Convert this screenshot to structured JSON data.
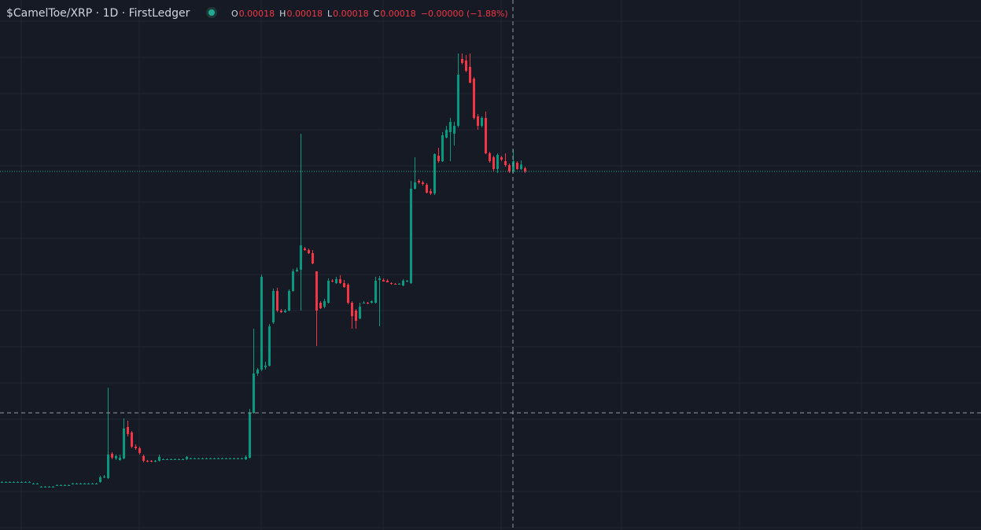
{
  "chart_data": {
    "type": "candlestick",
    "title": "$CamelToe/XRP · 1D · FirstLedger",
    "legend": [
      {
        "key": "O",
        "value": "0.00018"
      },
      {
        "key": "H",
        "value": "0.00018"
      },
      {
        "key": "L",
        "value": "0.00018"
      },
      {
        "key": "C",
        "value": "0.00018"
      }
    ],
    "change": "−0.00000 (−1.88%)",
    "up_color": "#089981",
    "down_color": "#f23645",
    "ylim": [
      0,
      0.0002696
    ],
    "candles": [
      [
        2.44e-05,
        2.48e-05,
        2.4e-05,
        2.44e-05
      ],
      [
        2.44e-05,
        2.48e-05,
        2.4e-05,
        2.44e-05
      ],
      [
        2.44e-05,
        2.48e-05,
        2.4e-05,
        2.44e-05
      ],
      [
        2.44e-05,
        2.48e-05,
        2.4e-05,
        2.44e-05
      ],
      [
        2.44e-05,
        2.48e-05,
        2.4e-05,
        2.44e-05
      ],
      [
        2.44e-05,
        2.48e-05,
        2.4e-05,
        2.44e-05
      ],
      [
        2.44e-05,
        2.48e-05,
        2.4e-05,
        2.44e-05
      ],
      [
        2.44e-05,
        2.48e-05,
        2.4e-05,
        2.44e-05
      ],
      [
        2.36e-05,
        2.4e-05,
        2.32e-05,
        2.36e-05
      ],
      [
        2.36e-05,
        2.4e-05,
        2.32e-05,
        2.36e-05
      ],
      [
        2.2e-05,
        2.24e-05,
        2.16e-05,
        2.2e-05
      ],
      [
        2.2e-05,
        2.24e-05,
        2.16e-05,
        2.2e-05
      ],
      [
        2.2e-05,
        2.24e-05,
        2.16e-05,
        2.2e-05
      ],
      [
        2.2e-05,
        2.24e-05,
        2.16e-05,
        2.2e-05
      ],
      [
        2.28e-05,
        2.32e-05,
        2.24e-05,
        2.28e-05
      ],
      [
        2.28e-05,
        2.32e-05,
        2.24e-05,
        2.28e-05
      ],
      [
        2.28e-05,
        2.32e-05,
        2.24e-05,
        2.28e-05
      ],
      [
        2.28e-05,
        2.32e-05,
        2.24e-05,
        2.28e-05
      ],
      [
        2.36e-05,
        2.4e-05,
        2.32e-05,
        2.36e-05
      ],
      [
        2.36e-05,
        2.4e-05,
        2.32e-05,
        2.36e-05
      ],
      [
        2.36e-05,
        2.4e-05,
        2.32e-05,
        2.36e-05
      ],
      [
        2.36e-05,
        2.4e-05,
        2.32e-05,
        2.36e-05
      ],
      [
        2.36e-05,
        2.4e-05,
        2.32e-05,
        2.36e-05
      ],
      [
        2.36e-05,
        2.4e-05,
        2.32e-05,
        2.36e-05
      ],
      [
        2.36e-05,
        2.4e-05,
        2.32e-05,
        2.36e-05
      ],
      [
        2.44e-05,
        2.76e-05,
        2.4e-05,
        2.68e-05
      ],
      [
        2.68e-05,
        2.8e-05,
        2.64e-05,
        2.72e-05
      ],
      [
        2.64e-05,
        7.24e-05,
        2.6e-05,
        3.84e-05
      ],
      [
        3.88e-05,
        3.96e-05,
        3.6e-05,
        3.68e-05
      ],
      [
        3.64e-05,
        3.84e-05,
        3.56e-05,
        3.76e-05
      ],
      [
        3.56e-05,
        3.84e-05,
        3.52e-05,
        3.68e-05
      ],
      [
        3.64e-05,
        5.68e-05,
        3.6e-05,
        5.16e-05
      ],
      [
        5.24e-05,
        5.56e-05,
        4.76e-05,
        4.88e-05
      ],
      [
        4.96e-05,
        5.04e-05,
        4.16e-05,
        4.24e-05
      ],
      [
        4.24e-05,
        4.36e-05,
        4.08e-05,
        4.16e-05
      ],
      [
        4.16e-05,
        4.24e-05,
        3.84e-05,
        3.92e-05
      ],
      [
        3.76e-05,
        3.84e-05,
        3.44e-05,
        3.52e-05
      ],
      [
        3.52e-05,
        3.56e-05,
        3.44e-05,
        3.48e-05
      ],
      [
        3.52e-05,
        3.56e-05,
        3.44e-05,
        3.48e-05
      ],
      [
        3.52e-05,
        3.56e-05,
        3.44e-05,
        3.52e-05
      ],
      [
        3.52e-05,
        3.84e-05,
        3.48e-05,
        3.72e-05
      ],
      [
        3.6e-05,
        3.64e-05,
        3.56e-05,
        3.6e-05
      ],
      [
        3.6e-05,
        3.64e-05,
        3.56e-05,
        3.6e-05
      ],
      [
        3.6e-05,
        3.64e-05,
        3.56e-05,
        3.6e-05
      ],
      [
        3.6e-05,
        3.64e-05,
        3.56e-05,
        3.6e-05
      ],
      [
        3.6e-05,
        3.64e-05,
        3.56e-05,
        3.6e-05
      ],
      [
        3.6e-05,
        3.64e-05,
        3.56e-05,
        3.6e-05
      ],
      [
        3.6e-05,
        3.76e-05,
        3.56e-05,
        3.72e-05
      ],
      [
        3.64e-05,
        3.68e-05,
        3.6e-05,
        3.64e-05
      ],
      [
        3.64e-05,
        3.68e-05,
        3.6e-05,
        3.64e-05
      ],
      [
        3.64e-05,
        3.68e-05,
        3.6e-05,
        3.64e-05
      ],
      [
        3.64e-05,
        3.68e-05,
        3.6e-05,
        3.64e-05
      ],
      [
        3.64e-05,
        3.68e-05,
        3.6e-05,
        3.64e-05
      ],
      [
        3.64e-05,
        3.68e-05,
        3.6e-05,
        3.64e-05
      ],
      [
        3.64e-05,
        3.68e-05,
        3.6e-05,
        3.64e-05
      ],
      [
        3.64e-05,
        3.68e-05,
        3.6e-05,
        3.64e-05
      ],
      [
        3.64e-05,
        3.68e-05,
        3.6e-05,
        3.64e-05
      ],
      [
        3.64e-05,
        3.68e-05,
        3.6e-05,
        3.64e-05
      ],
      [
        3.64e-05,
        3.68e-05,
        3.6e-05,
        3.64e-05
      ],
      [
        3.64e-05,
        3.68e-05,
        3.6e-05,
        3.64e-05
      ],
      [
        3.64e-05,
        3.68e-05,
        3.6e-05,
        3.64e-05
      ],
      [
        3.64e-05,
        3.68e-05,
        3.6e-05,
        3.64e-05
      ],
      [
        3.6e-05,
        3.8e-05,
        3.56e-05,
        3.72e-05
      ],
      [
        3.68e-05,
        6.16e-05,
        3.64e-05,
        5.96e-05
      ],
      [
        5.96e-05,
        0.0001024,
        5.92e-05,
        7.96e-05
      ],
      [
        7.96e-05,
        8.24e-05,
        7.84e-05,
        8.16e-05
      ],
      [
        8.16e-05,
        0.00013,
        8.08e-05,
        0.0001288
      ],
      [
        8.28e-05,
        8.56e-05,
        8.16e-05,
        8.36e-05
      ],
      [
        8.36e-05,
        0.0001048,
        8.32e-05,
        0.0001036
      ],
      [
        0.0001056,
        0.0001228,
        0.0001048,
        0.0001216
      ],
      [
        0.0001216,
        0.0001232,
        0.0001108,
        0.0001116
      ],
      [
        0.0001116,
        0.0001124,
        0.0001104,
        0.0001108
      ],
      [
        0.0001108,
        0.0001124,
        0.0001104,
        0.0001116
      ],
      [
        0.0001116,
        0.0001224,
        0.0001112,
        0.0001216
      ],
      [
        0.0001216,
        0.0001328,
        0.0001212,
        0.0001316
      ],
      [
        0.0001316,
        0.0001336,
        0.0001312,
        0.0001324
      ],
      [
        0.0001324,
        0.0002016,
        0.0001116,
        0.0001448
      ],
      [
        0.0001432,
        0.000144,
        0.000142,
        0.0001424
      ],
      [
        0.0001424,
        0.0001432,
        0.0001404,
        0.0001408
      ],
      [
        0.0001408,
        0.0001424,
        0.0001352,
        0.0001356
      ],
      [
        0.0001316,
        0.0001316,
        9.36e-05,
        0.0001116
      ],
      [
        0.0001156,
        0.0001164,
        0.0001124,
        0.0001128
      ],
      [
        0.0001136,
        0.0001176,
        0.0001128,
        0.0001164
      ],
      [
        0.0001156,
        0.000128,
        0.0001152,
        0.0001268
      ],
      [
        0.0001268,
        0.0001276,
        0.000126,
        0.0001264
      ],
      [
        0.0001256,
        0.0001288,
        0.0001252,
        0.0001276
      ],
      [
        0.0001276,
        0.0001296,
        0.0001252,
        0.0001256
      ],
      [
        0.0001256,
        0.0001272,
        0.0001232,
        0.0001236
      ],
      [
        0.0001248,
        0.0001256,
        0.0001148,
        0.0001156
      ],
      [
        0.0001156,
        0.0001164,
        0.0001024,
        0.0001088
      ],
      [
        0.0001116,
        0.0001124,
        0.0001024,
        0.0001064
      ],
      [
        0.0001076,
        0.0001156,
        0.0001072,
        0.0001136
      ],
      [
        0.0001156,
        0.0001164,
        0.0001152,
        0.0001156
      ],
      [
        0.0001156,
        0.000116,
        0.0001148,
        0.0001152
      ],
      [
        0.0001156,
        0.0001168,
        0.0001152,
        0.0001164
      ],
      [
        0.0001156,
        0.0001288,
        0.0001152,
        0.0001268
      ],
      [
        0.0001272,
        0.0001292,
        0.0001036,
        0.000128
      ],
      [
        0.0001272,
        0.000128,
        0.0001264,
        0.0001264
      ],
      [
        0.0001268,
        0.0001276,
        0.000126,
        0.000126
      ],
      [
        0.0001256,
        0.000126,
        0.0001248,
        0.0001252
      ],
      [
        0.0001252,
        0.0001256,
        0.0001248,
        0.0001248
      ],
      [
        0.0001252,
        0.0001256,
        0.0001248,
        0.0001252
      ],
      [
        0.0001244,
        0.0001276,
        0.000124,
        0.0001268
      ],
      [
        0.0001264,
        0.0001272,
        0.000126,
        0.0001268
      ],
      [
        0.0001256,
        0.0001776,
        0.0001252,
        0.0001736
      ],
      [
        0.0001736,
        0.0001896,
        0.0001732,
        0.0001768
      ],
      [
        0.0001776,
        0.0001784,
        0.000176,
        0.0001768
      ],
      [
        0.0001768,
        0.0001776,
        0.0001752,
        0.000176
      ],
      [
        0.0001756,
        0.0001764,
        0.0001712,
        0.0001716
      ],
      [
        0.0001724,
        0.0001736,
        0.0001704,
        0.0001712
      ],
      [
        0.0001712,
        0.0001916,
        0.0001704,
        0.0001912
      ],
      [
        0.0001904,
        0.0001944,
        0.0001868,
        0.0001876
      ],
      [
        0.0001876,
        0.0002024,
        0.0001872,
        0.0002008
      ],
      [
        0.0001996,
        0.0002056,
        0.0001992,
        0.0002036
      ],
      [
        0.0002024,
        0.0002096,
        0.0001876,
        0.0002076
      ],
      [
        0.0002016,
        0.0002076,
        0.0001956,
        0.0002056
      ],
      [
        0.0002056,
        0.0002424,
        0.0002048,
        0.0002316
      ],
      [
        0.0002396,
        0.0002424,
        0.0002368,
        0.0002376
      ],
      [
        0.0002388,
        0.0002416,
        0.0002328,
        0.0002336
      ],
      [
        0.0002356,
        0.0002424,
        0.0002272,
        0.0002276
      ],
      [
        0.0002296,
        0.0002304,
        0.0002088,
        0.0002096
      ],
      [
        0.0002104,
        0.0002116,
        0.0002036,
        0.0002056
      ],
      [
        0.0002056,
        0.0002104,
        0.0002048,
        0.0002096
      ],
      [
        0.0002096,
        0.0002128,
        0.0001912,
        0.0001916
      ],
      [
        0.0001916,
        0.0001924,
        0.0001868,
        0.0001876
      ],
      [
        0.0001896,
        0.0001904,
        0.0001824,
        0.0001836
      ],
      [
        0.0001836,
        0.0001916,
        0.0001816,
        0.0001908
      ],
      [
        0.0001896,
        0.0001904,
        0.0001876,
        0.0001884
      ],
      [
        0.0001876,
        0.0001916,
        0.0001848,
        0.0001856
      ],
      [
        0.0001856,
        0.0001864,
        0.0001816,
        0.0001824
      ],
      [
        0.0001824,
        0.0001936,
        0.0001816,
        0.0001876
      ],
      [
        0.0001868,
        0.0001876,
        0.0001832,
        0.0001836
      ],
      [
        0.0001836,
        0.000188,
        0.0001832,
        0.0001859
      ],
      [
        0.000184,
        0.0001848,
        0.0001816,
        0.0001824
      ]
    ]
  }
}
